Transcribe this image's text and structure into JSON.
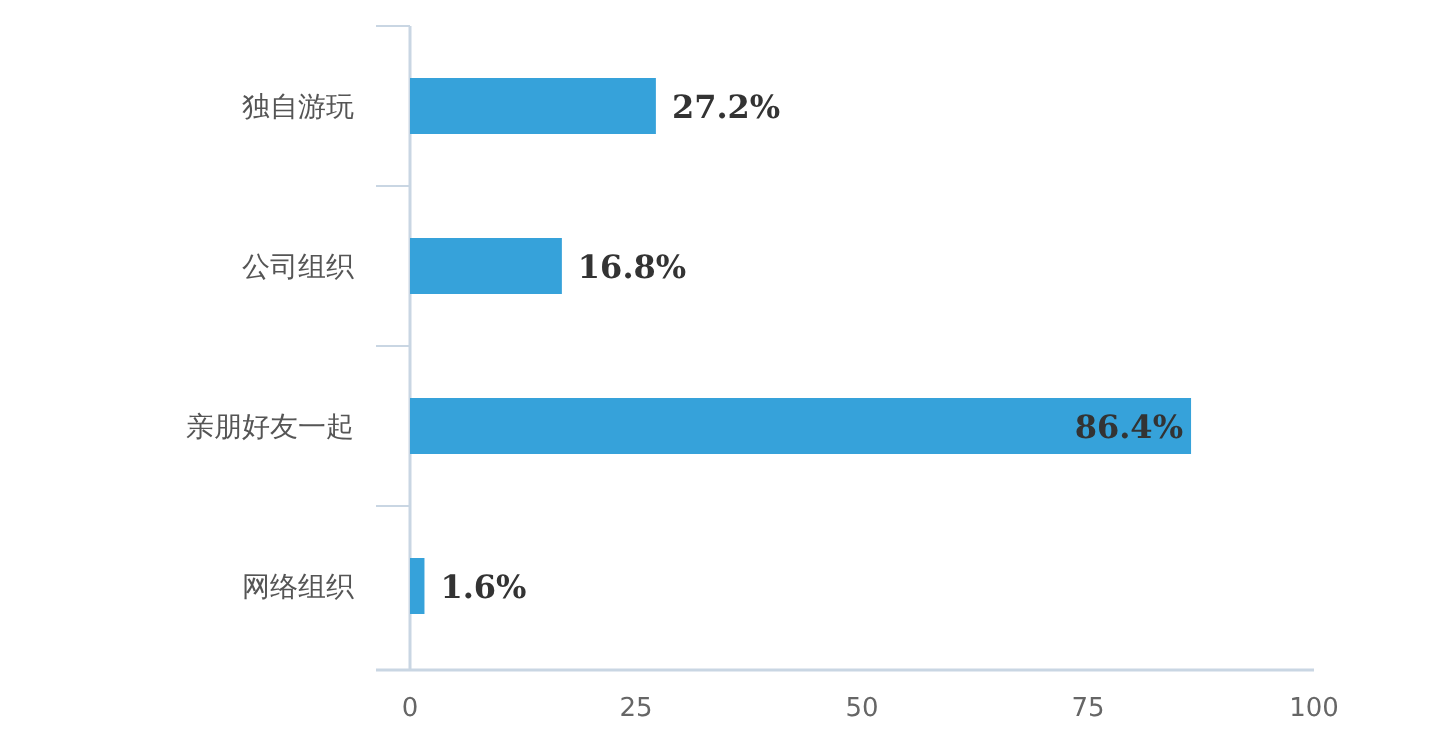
{
  "chart_data": {
    "type": "bar",
    "orientation": "horizontal",
    "categories": [
      "独自游玩",
      "公司组织",
      "亲朋好友一起",
      "网络组织"
    ],
    "values": [
      27.2,
      16.8,
      86.4,
      1.6
    ],
    "value_labels": [
      "27.2%",
      "16.8%",
      "86.4%",
      "1.6%"
    ],
    "color": "#36a2da",
    "xlim": [
      0,
      100
    ],
    "xticks": [
      0,
      25,
      50,
      75,
      100
    ],
    "grid": false
  }
}
